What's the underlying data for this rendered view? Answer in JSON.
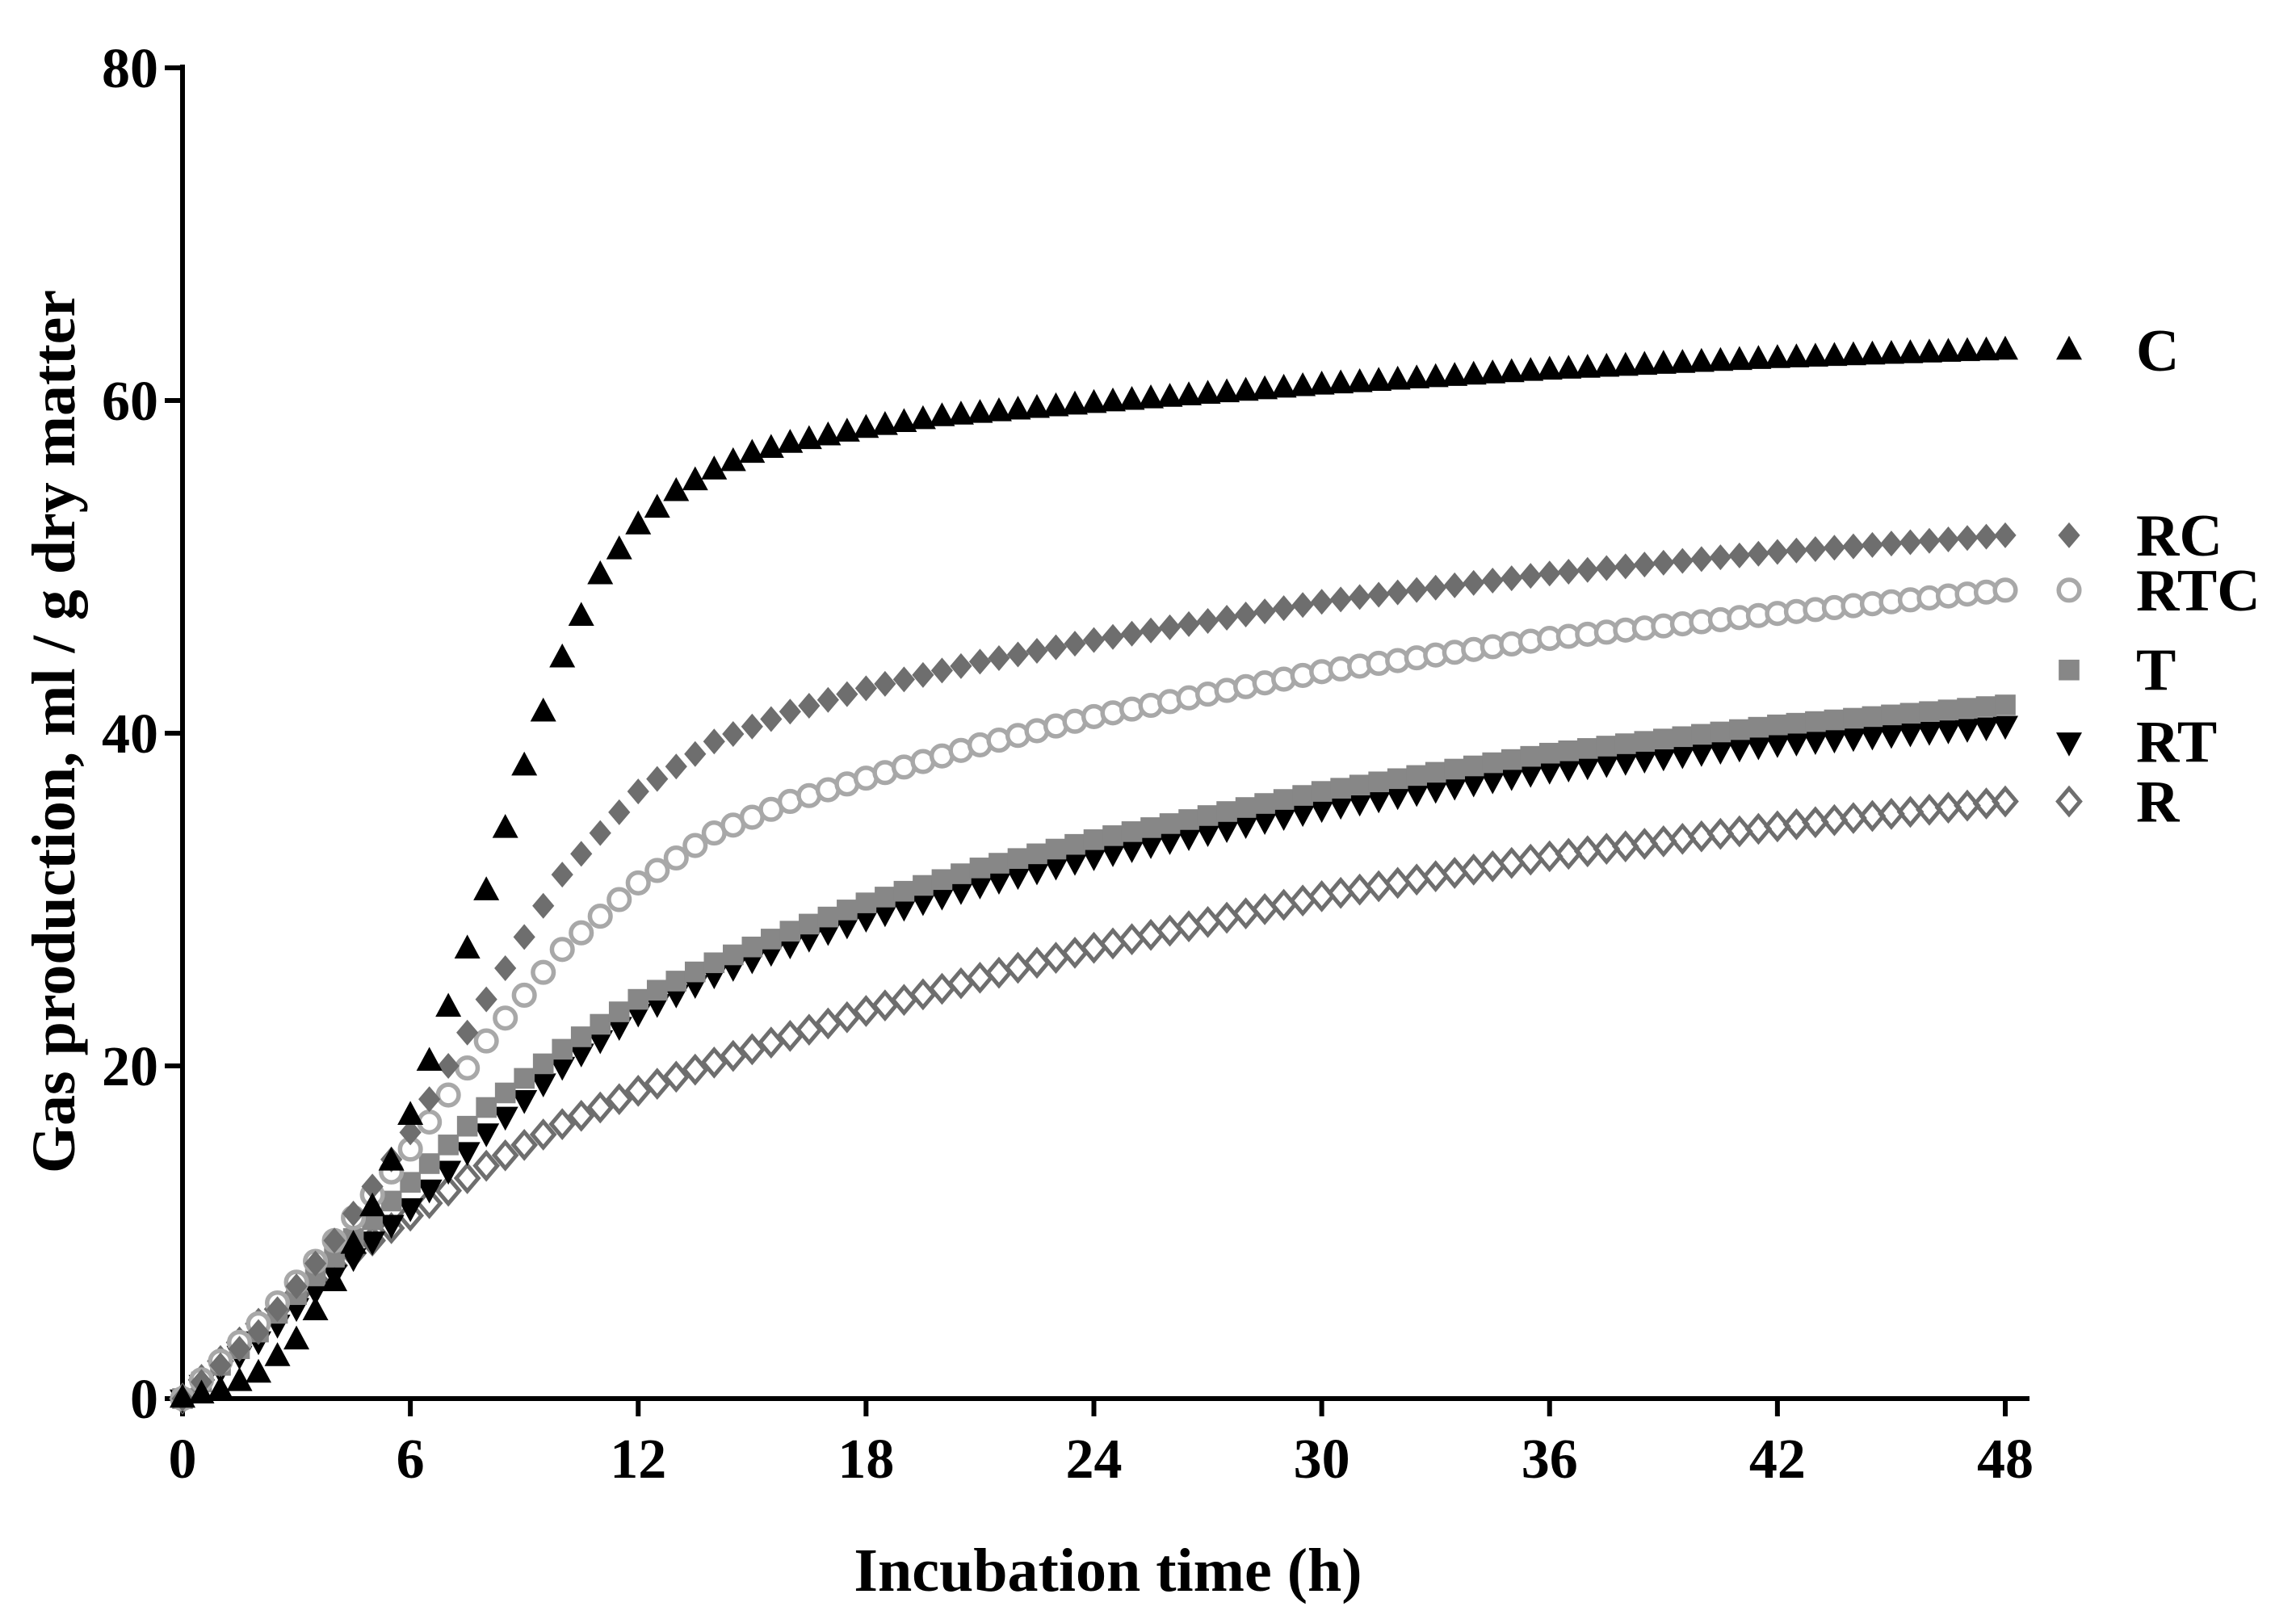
{
  "chart_data": {
    "type": "scatter",
    "title": "",
    "xlabel": "Incubation time (h)",
    "ylabel": "Gas production, ml / g dry matter",
    "xlim": [
      0,
      48
    ],
    "ylim": [
      0,
      80
    ],
    "xticks": [
      0,
      6,
      12,
      18,
      24,
      30,
      36,
      42,
      48
    ],
    "yticks": [
      0,
      20,
      40,
      60,
      80
    ],
    "grid": false,
    "legend": "right, at series ends",
    "x_step": 0.5,
    "series": [
      {
        "name": "C",
        "marker": "triangle-up",
        "color": "#000000",
        "x": [
          0,
          1,
          2,
          3,
          4,
          5,
          6,
          7,
          8,
          9,
          10,
          11,
          12,
          13,
          14,
          15,
          16,
          18,
          20,
          24,
          30,
          36,
          42,
          48
        ],
        "values": [
          0,
          0.5,
          1.5,
          3.5,
          7,
          11.5,
          17,
          23.5,
          30.5,
          38,
          44.5,
          49.5,
          52.5,
          54.5,
          55.8,
          56.8,
          57.4,
          58.3,
          59,
          59.8,
          60.9,
          61.8,
          62.5,
          63
        ]
      },
      {
        "name": "RC",
        "marker": "diamond",
        "color": "#6e6e6e",
        "x": [
          0,
          2,
          4,
          6,
          8,
          10,
          12,
          14,
          16,
          18,
          21,
          24,
          30,
          36,
          42,
          48
        ],
        "values": [
          0,
          4,
          9.5,
          16,
          24,
          31.5,
          36.5,
          39.5,
          41.3,
          42.7,
          44.3,
          45.6,
          47.9,
          49.6,
          50.9,
          51.9
        ]
      },
      {
        "name": "RTC",
        "marker": "circle-open",
        "color": "#a8a8a8",
        "x": [
          0,
          2,
          4,
          6,
          8,
          10,
          12,
          14,
          16,
          18,
          21,
          24,
          30,
          36,
          42,
          48
        ],
        "values": [
          0,
          4.5,
          9.5,
          15,
          21.5,
          27,
          31,
          34,
          35.9,
          37.3,
          39.3,
          41,
          43.7,
          45.7,
          47.2,
          48.6
        ]
      },
      {
        "name": "T",
        "marker": "square",
        "color": "#878787",
        "x": [
          0,
          2,
          4,
          6,
          8,
          10,
          12,
          14,
          16,
          18,
          21,
          24,
          30,
          36,
          42,
          48
        ],
        "values": [
          0,
          4,
          8.5,
          13,
          17.5,
          21,
          24,
          26.2,
          28.1,
          29.8,
          31.9,
          33.6,
          36.5,
          38.8,
          40.5,
          41.7
        ]
      },
      {
        "name": "RT",
        "marker": "triangle-down",
        "color": "#000000",
        "x": [
          0,
          2,
          4,
          6,
          8,
          10,
          12,
          14,
          16,
          18,
          21,
          24,
          30,
          36,
          42,
          48
        ],
        "values": [
          0,
          3.5,
          7.5,
          11.5,
          16,
          20,
          23.2,
          25.5,
          27.3,
          28.9,
          30.9,
          32.6,
          35.5,
          37.8,
          39.4,
          40.5
        ]
      },
      {
        "name": "R",
        "marker": "diamond-open",
        "color": "#6e6e6e",
        "x": [
          0,
          2,
          4,
          6,
          8,
          10,
          12,
          14,
          16,
          18,
          21,
          24,
          30,
          36,
          42,
          48
        ],
        "values": [
          0,
          4.5,
          8,
          11,
          14,
          16.5,
          18.5,
          20.2,
          21.8,
          23.3,
          25.3,
          27.1,
          30.2,
          32.6,
          34.4,
          35.9
        ]
      }
    ]
  }
}
